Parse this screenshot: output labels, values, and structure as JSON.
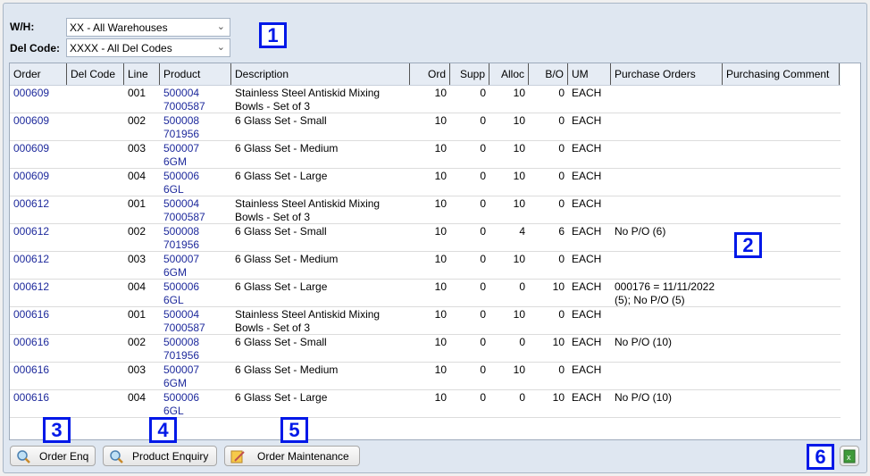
{
  "filters": {
    "wh_label": "W/H:",
    "wh_value": "XX - All Warehouses",
    "del_label": "Del Code:",
    "del_value": "XXXX - All Del Codes"
  },
  "columns": [
    "Order",
    "Del Code",
    "Line",
    "Product",
    "Description",
    "Ord",
    "Supp",
    "Alloc",
    "B/O",
    "UM",
    "Purchase Orders",
    "Purchasing Comment"
  ],
  "rows": [
    {
      "order": "000609",
      "del": "",
      "line": "001",
      "product": "500004\n7000587",
      "desc": "Stainless Steel Antiskid Mixing\nBowls - Set of 3",
      "ord": "10",
      "supp": "0",
      "alloc": "10",
      "bo": "0",
      "um": "EACH",
      "po": "",
      "comment": ""
    },
    {
      "order": "000609",
      "del": "",
      "line": "002",
      "product": "500008\n701956",
      "desc": "6 Glass Set - Small",
      "ord": "10",
      "supp": "0",
      "alloc": "10",
      "bo": "0",
      "um": "EACH",
      "po": "",
      "comment": ""
    },
    {
      "order": "000609",
      "del": "",
      "line": "003",
      "product": "500007\n6GM",
      "desc": "6 Glass Set - Medium",
      "ord": "10",
      "supp": "0",
      "alloc": "10",
      "bo": "0",
      "um": "EACH",
      "po": "",
      "comment": ""
    },
    {
      "order": "000609",
      "del": "",
      "line": "004",
      "product": "500006\n6GL",
      "desc": "6 Glass Set - Large",
      "ord": "10",
      "supp": "0",
      "alloc": "10",
      "bo": "0",
      "um": "EACH",
      "po": "",
      "comment": ""
    },
    {
      "order": "000612",
      "del": "",
      "line": "001",
      "product": "500004\n7000587",
      "desc": "Stainless Steel Antiskid Mixing\nBowls - Set of 3",
      "ord": "10",
      "supp": "0",
      "alloc": "10",
      "bo": "0",
      "um": "EACH",
      "po": "",
      "comment": ""
    },
    {
      "order": "000612",
      "del": "",
      "line": "002",
      "product": "500008\n701956",
      "desc": "6 Glass Set - Small",
      "ord": "10",
      "supp": "0",
      "alloc": "4",
      "bo": "6",
      "um": "EACH",
      "po": "No P/O (6)",
      "comment": ""
    },
    {
      "order": "000612",
      "del": "",
      "line": "003",
      "product": "500007\n6GM",
      "desc": "6 Glass Set - Medium",
      "ord": "10",
      "supp": "0",
      "alloc": "10",
      "bo": "0",
      "um": "EACH",
      "po": "",
      "comment": ""
    },
    {
      "order": "000612",
      "del": "",
      "line": "004",
      "product": "500006\n6GL",
      "desc": "6 Glass Set - Large",
      "ord": "10",
      "supp": "0",
      "alloc": "0",
      "bo": "10",
      "um": "EACH",
      "po": "000176 = 11/11/2022\n(5); No P/O (5)",
      "comment": ""
    },
    {
      "order": "000616",
      "del": "",
      "line": "001",
      "product": "500004\n7000587",
      "desc": "Stainless Steel Antiskid Mixing\nBowls - Set of 3",
      "ord": "10",
      "supp": "0",
      "alloc": "10",
      "bo": "0",
      "um": "EACH",
      "po": "",
      "comment": ""
    },
    {
      "order": "000616",
      "del": "",
      "line": "002",
      "product": "500008\n701956",
      "desc": "6 Glass Set - Small",
      "ord": "10",
      "supp": "0",
      "alloc": "0",
      "bo": "10",
      "um": "EACH",
      "po": "No P/O (10)",
      "comment": ""
    },
    {
      "order": "000616",
      "del": "",
      "line": "003",
      "product": "500007\n6GM",
      "desc": "6 Glass Set - Medium",
      "ord": "10",
      "supp": "0",
      "alloc": "10",
      "bo": "0",
      "um": "EACH",
      "po": "",
      "comment": ""
    },
    {
      "order": "000616",
      "del": "",
      "line": "004",
      "product": "500006\n6GL",
      "desc": "6 Glass Set - Large",
      "ord": "10",
      "supp": "0",
      "alloc": "0",
      "bo": "10",
      "um": "EACH",
      "po": "No P/O (10)",
      "comment": ""
    }
  ],
  "buttons": {
    "order_enq": "Order Enq",
    "product_enquiry": "Product Enquiry",
    "order_maintenance": "Order Maintenance"
  },
  "callouts": [
    "1",
    "2",
    "3",
    "4",
    "5",
    "6"
  ]
}
